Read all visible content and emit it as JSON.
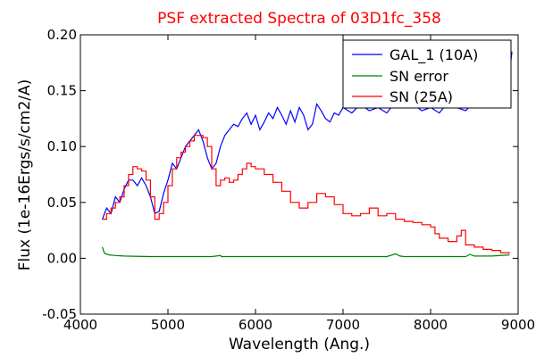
{
  "chart_data": {
    "type": "line",
    "title": "PSF extracted Spectra of 03D1fc_358",
    "xlabel": "Wavelength (Ang.)",
    "ylabel": "Flux (1e-16Ergs/s/cm2/A)",
    "xlim": [
      4000,
      9000
    ],
    "ylim": [
      -0.05,
      0.2
    ],
    "xticks": [
      4000,
      5000,
      6000,
      7000,
      8000,
      9000
    ],
    "yticks": [
      -0.05,
      0.0,
      0.05,
      0.1,
      0.15,
      0.2
    ],
    "xtick_labels": [
      "4000",
      "5000",
      "6000",
      "7000",
      "8000",
      "9000"
    ],
    "ytick_labels": [
      "-0.05",
      "0.00",
      "0.05",
      "0.10",
      "0.15",
      "0.20"
    ],
    "grid": false,
    "legend_position": "top-right",
    "series": [
      {
        "name": "GAL_1 (10A)",
        "color": "#0000ff",
        "step": false,
        "x": [
          4250,
          4300,
          4350,
          4400,
          4450,
          4500,
          4550,
          4600,
          4650,
          4700,
          4750,
          4800,
          4850,
          4900,
          4950,
          5000,
          5050,
          5100,
          5150,
          5200,
          5250,
          5300,
          5350,
          5400,
          5450,
          5500,
          5550,
          5600,
          5650,
          5700,
          5750,
          5800,
          5850,
          5900,
          5950,
          6000,
          6050,
          6100,
          6150,
          6200,
          6250,
          6300,
          6350,
          6400,
          6450,
          6500,
          6550,
          6600,
          6650,
          6700,
          6750,
          6800,
          6850,
          6900,
          6950,
          7000,
          7100,
          7200,
          7300,
          7400,
          7500,
          7600,
          7700,
          7800,
          7900,
          8000,
          8100,
          8200,
          8300,
          8400,
          8500,
          8600,
          8700,
          8800,
          8850,
          8900,
          8930
        ],
        "y": [
          0.035,
          0.045,
          0.04,
          0.055,
          0.05,
          0.062,
          0.07,
          0.07,
          0.065,
          0.072,
          0.065,
          0.055,
          0.04,
          0.042,
          0.058,
          0.07,
          0.085,
          0.08,
          0.09,
          0.1,
          0.105,
          0.11,
          0.115,
          0.105,
          0.09,
          0.08,
          0.085,
          0.1,
          0.11,
          0.115,
          0.12,
          0.118,
          0.125,
          0.13,
          0.12,
          0.128,
          0.115,
          0.122,
          0.13,
          0.125,
          0.135,
          0.128,
          0.12,
          0.132,
          0.122,
          0.135,
          0.128,
          0.115,
          0.12,
          0.138,
          0.132,
          0.125,
          0.122,
          0.13,
          0.128,
          0.135,
          0.13,
          0.138,
          0.132,
          0.135,
          0.13,
          0.14,
          0.135,
          0.138,
          0.132,
          0.135,
          0.13,
          0.14,
          0.135,
          0.132,
          0.14,
          0.135,
          0.138,
          0.14,
          0.15,
          0.165,
          0.185
        ]
      },
      {
        "name": "SN error",
        "color": "#008000",
        "step": false,
        "x": [
          4250,
          4260,
          4270,
          4290,
          4330,
          4400,
          4500,
          4600,
          4800,
          5000,
          5200,
          5500,
          5600,
          5610,
          5700,
          6000,
          6500,
          7000,
          7500,
          7600,
          7650,
          7700,
          8000,
          8300,
          8400,
          8450,
          8500,
          8700,
          8900
        ],
        "y": [
          0.01,
          0.008,
          0.005,
          0.004,
          0.003,
          0.0025,
          0.002,
          0.0018,
          0.0015,
          0.0015,
          0.0015,
          0.0015,
          0.0025,
          0.0015,
          0.0015,
          0.0015,
          0.0015,
          0.0015,
          0.0015,
          0.004,
          0.002,
          0.0015,
          0.0015,
          0.0015,
          0.0015,
          0.0035,
          0.002,
          0.002,
          0.003
        ]
      },
      {
        "name": "SN (25A)",
        "color": "#ff0000",
        "step": true,
        "x": [
          4250,
          4300,
          4350,
          4400,
          4450,
          4500,
          4550,
          4600,
          4650,
          4700,
          4750,
          4800,
          4850,
          4900,
          4950,
          5000,
          5050,
          5100,
          5150,
          5200,
          5250,
          5300,
          5350,
          5400,
          5450,
          5500,
          5550,
          5600,
          5650,
          5700,
          5750,
          5800,
          5850,
          5900,
          5950,
          6000,
          6100,
          6200,
          6300,
          6400,
          6500,
          6600,
          6700,
          6800,
          6900,
          7000,
          7100,
          7200,
          7300,
          7400,
          7500,
          7600,
          7700,
          7800,
          7900,
          8000,
          8050,
          8100,
          8200,
          8300,
          8350,
          8400,
          8500,
          8600,
          8700,
          8800,
          8900
        ],
        "y": [
          0.035,
          0.04,
          0.045,
          0.05,
          0.055,
          0.065,
          0.075,
          0.082,
          0.08,
          0.078,
          0.07,
          0.055,
          0.035,
          0.04,
          0.05,
          0.065,
          0.08,
          0.09,
          0.095,
          0.1,
          0.105,
          0.11,
          0.11,
          0.108,
          0.1,
          0.08,
          0.065,
          0.07,
          0.072,
          0.068,
          0.07,
          0.075,
          0.08,
          0.085,
          0.082,
          0.08,
          0.075,
          0.068,
          0.06,
          0.05,
          0.045,
          0.05,
          0.058,
          0.055,
          0.048,
          0.04,
          0.038,
          0.04,
          0.045,
          0.038,
          0.04,
          0.035,
          0.033,
          0.032,
          0.03,
          0.028,
          0.022,
          0.018,
          0.015,
          0.02,
          0.025,
          0.012,
          0.01,
          0.008,
          0.007,
          0.005,
          0.004
        ]
      }
    ]
  }
}
